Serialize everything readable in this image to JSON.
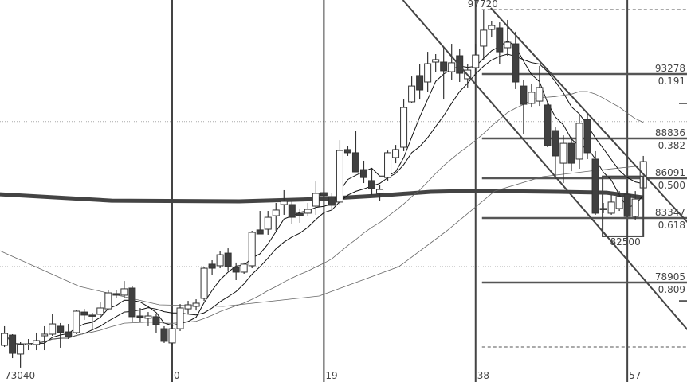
{
  "chart_data": {
    "type": "candlestick",
    "title": "",
    "xlabel": "",
    "ylabel": "",
    "colors": {
      "bull_fill": "#ffffff",
      "bear_fill": "#404040",
      "outline": "#333333",
      "fib_line": "#555555",
      "grid": "#aaaaaa",
      "ma_short": "#111111",
      "ma_long": "#666666",
      "ma_thick": "#444444"
    },
    "x_tick_labels": [
      {
        "index": 0,
        "label": "0"
      },
      {
        "index": 19,
        "label": "19"
      },
      {
        "index": 38,
        "label": "38"
      },
      {
        "index": 57,
        "label": "57"
      }
    ],
    "corner_label": "73040",
    "grid_prices": [
      90000,
      80000
    ],
    "axis_tick_prices": [
      91250,
      77640
    ],
    "start_index": -21,
    "candles_ohlc": [
      [
        74570,
        75890,
        74460,
        75390
      ],
      [
        75280,
        75340,
        73690,
        74020
      ],
      [
        73970,
        74790,
        73040,
        74630
      ],
      [
        74630,
        75010,
        74240,
        74680
      ],
      [
        74630,
        75450,
        74240,
        74900
      ],
      [
        75230,
        75890,
        74240,
        75340
      ],
      [
        75340,
        76760,
        75230,
        76050
      ],
      [
        75890,
        76110,
        74410,
        75450
      ],
      [
        75500,
        76050,
        75010,
        75170
      ],
      [
        75450,
        77040,
        75340,
        76930
      ],
      [
        76870,
        77090,
        76330,
        76660
      ],
      [
        76660,
        76820,
        75720,
        76600
      ],
      [
        76710,
        77530,
        76600,
        77150
      ],
      [
        77090,
        78360,
        76980,
        78190
      ],
      [
        78140,
        78410,
        77860,
        78030
      ],
      [
        78030,
        79010,
        77860,
        78470
      ],
      [
        78520,
        78680,
        76160,
        76550
      ],
      [
        76600,
        77150,
        76160,
        76550
      ],
      [
        76440,
        76870,
        75890,
        76600
      ],
      [
        76550,
        76710,
        75450,
        76000
      ],
      [
        75720,
        75890,
        74740,
        74850
      ],
      [
        74740,
        76000,
        74630,
        75720
      ],
      [
        75720,
        77420,
        75560,
        77150
      ],
      [
        77090,
        77640,
        76710,
        77370
      ],
      [
        77260,
        77750,
        76980,
        77480
      ],
      [
        77810,
        80000,
        77640,
        79890
      ],
      [
        80170,
        80440,
        79400,
        79890
      ],
      [
        80060,
        81100,
        79890,
        80820
      ],
      [
        80930,
        81260,
        79730,
        80000
      ],
      [
        79950,
        80280,
        79070,
        79620
      ],
      [
        79620,
        80280,
        79510,
        80170
      ],
      [
        80060,
        82470,
        79890,
        82360
      ],
      [
        82530,
        83840,
        82250,
        82250
      ],
      [
        82580,
        83840,
        82200,
        83400
      ],
      [
        83510,
        84390,
        82470,
        83900
      ],
      [
        84280,
        85270,
        83570,
        84500
      ],
      [
        84280,
        84500,
        82910,
        83400
      ],
      [
        83680,
        84010,
        83020,
        83510
      ],
      [
        83680,
        84390,
        83510,
        83950
      ],
      [
        84170,
        85870,
        83570,
        85050
      ],
      [
        85100,
        85430,
        84120,
        84880
      ],
      [
        84830,
        85100,
        83950,
        84230
      ],
      [
        84450,
        88720,
        84280,
        88010
      ],
      [
        88070,
        88340,
        87630,
        87850
      ],
      [
        87850,
        89330,
        86860,
        86530
      ],
      [
        86690,
        87300,
        85760,
        86140
      ],
      [
        85930,
        86750,
        84940,
        85380
      ],
      [
        85050,
        85650,
        84500,
        85320
      ],
      [
        86140,
        88000,
        85930,
        87850
      ],
      [
        87520,
        88390,
        87130,
        88070
      ],
      [
        88230,
        91520,
        87960,
        90970
      ],
      [
        91360,
        93110,
        91250,
        92450
      ],
      [
        93170,
        93990,
        91520,
        92180
      ],
      [
        92730,
        94810,
        92070,
        93990
      ],
      [
        94100,
        94650,
        93440,
        94270
      ],
      [
        94100,
        95090,
        91520,
        93500
      ],
      [
        93440,
        95360,
        92890,
        94050
      ],
      [
        94540,
        94980,
        92730,
        93330
      ],
      [
        92950,
        93990,
        92350,
        93550
      ],
      [
        93720,
        95360,
        93170,
        94590
      ],
      [
        95200,
        97720,
        94270,
        96300
      ],
      [
        96350,
        96900,
        95800,
        96620
      ],
      [
        96460,
        96840,
        93990,
        94810
      ],
      [
        95090,
        97010,
        94540,
        95470
      ],
      [
        95360,
        96190,
        92240,
        92730
      ],
      [
        92450,
        92890,
        89160,
        91190
      ],
      [
        91250,
        92620,
        90970,
        92020
      ],
      [
        91410,
        93830,
        91080,
        92350
      ],
      [
        91140,
        91360,
        88230,
        88340
      ],
      [
        89380,
        89600,
        86040,
        87630
      ],
      [
        87130,
        89050,
        85760,
        88500
      ],
      [
        88500,
        88940,
        86580,
        87130
      ],
      [
        87410,
        90530,
        86750,
        89880
      ],
      [
        90150,
        90590,
        87410,
        87850
      ],
      [
        87410,
        87960,
        83570,
        83680
      ],
      [
        84010,
        84390,
        83680,
        83950
      ],
      [
        83680,
        84940,
        83570,
        84450
      ],
      [
        84010,
        85210,
        83840,
        84830
      ],
      [
        84990,
        85210,
        83460,
        83460
      ],
      [
        83460,
        85210,
        83240,
        84660
      ],
      [
        85430,
        87630,
        85210,
        87240
      ]
    ],
    "moving_averages_periods": [
      5,
      10,
      25
    ],
    "long_ma_points": [
      [
        -21.6,
        81100
      ],
      [
        -11.6,
        78630
      ],
      [
        -1.6,
        77370
      ],
      [
        6.4,
        77260
      ],
      [
        18.4,
        77970
      ],
      [
        28.4,
        80000
      ],
      [
        34.4,
        82470
      ],
      [
        40.4,
        85210
      ],
      [
        46.4,
        86200
      ],
      [
        52.4,
        86590
      ],
      [
        59,
        86970
      ]
    ],
    "thick_ma_points": [
      [
        -21.6,
        84990
      ],
      [
        -7.6,
        84550
      ],
      [
        8.4,
        84500
      ],
      [
        18.4,
        84660
      ],
      [
        25.4,
        84880
      ],
      [
        32.4,
        85160
      ],
      [
        36.4,
        85210
      ],
      [
        40.4,
        85210
      ],
      [
        48.4,
        85160
      ],
      [
        54.4,
        85100
      ],
      [
        59,
        84770
      ]
    ],
    "channel_lines": [
      {
        "from": [
          28.9,
          98380
        ],
        "to": [
          64.6,
          75610
        ]
      },
      {
        "from": [
          39.9,
          97830
        ],
        "to": [
          64.6,
          83020
        ]
      }
    ],
    "high_label": {
      "index": 38.9,
      "price": 97720,
      "text": "97720"
    },
    "fib_start_index": 38.8,
    "fib_levels": [
      {
        "ratio": "0.000",
        "price": 97720,
        "price_label": "",
        "ratio_label": "",
        "dashed": true
      },
      {
        "ratio": "0.191",
        "price": 93278,
        "price_label": "93278",
        "ratio_label": "0.191",
        "dashed": false
      },
      {
        "ratio": "0.382",
        "price": 88836,
        "price_label": "88836",
        "ratio_label": "0.382",
        "dashed": false
      },
      {
        "ratio": "0.500",
        "price": 86091,
        "price_label": "86091",
        "ratio_label": "0.500",
        "dashed": false
      },
      {
        "ratio": "0.618",
        "price": 83347,
        "price_label": "83347",
        "ratio_label": "0.618",
        "dashed": false
      },
      {
        "ratio": "0.809",
        "price": 78905,
        "price_label": "78905",
        "ratio_label": "0.809",
        "dashed": false
      },
      {
        "ratio": "1.000",
        "price": 74463,
        "price_label": "",
        "ratio_label": "",
        "dashed": true
      }
    ],
    "box": {
      "from_index": 53.9,
      "to_index": 59,
      "top_price": 86220,
      "bottom_price": 82090,
      "label": "82500"
    }
  }
}
